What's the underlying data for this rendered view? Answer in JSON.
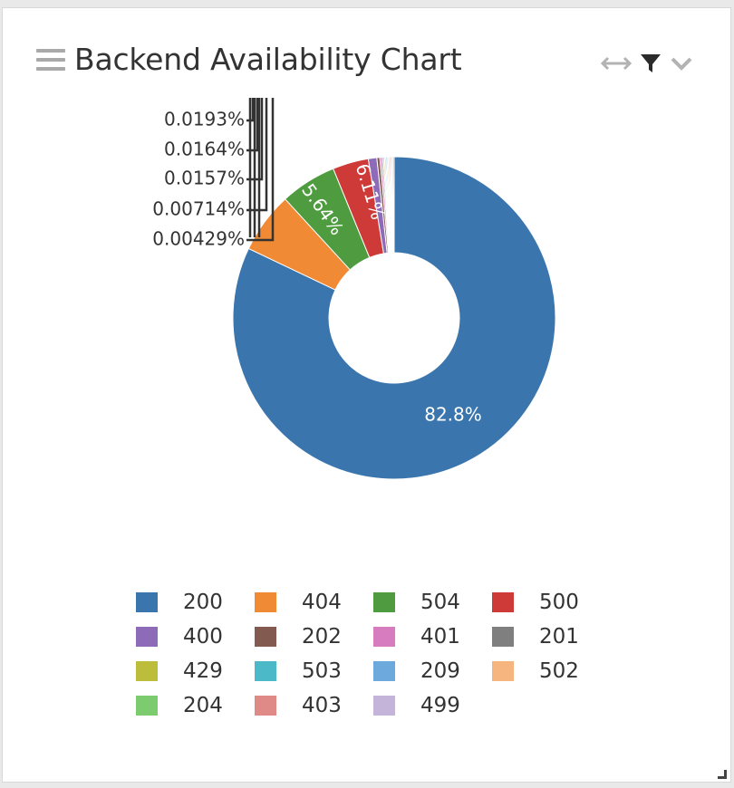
{
  "widget": {
    "title": "Backend Availability Chart",
    "icons": {
      "menu": "hamburger-icon",
      "expand": "horizontal-expand-icon",
      "filter": "filter-icon",
      "collapse": "chevron-down-icon",
      "resize": "resize-corner-icon"
    }
  },
  "chart_data": {
    "type": "donut",
    "title": "Backend Availability Chart",
    "slices": [
      {
        "label": "200",
        "percent": 82.8,
        "color": "#3a76ad",
        "data_label": "82.8%"
      },
      {
        "label": "404",
        "percent": 6.11,
        "color": "#f08a34",
        "data_label": "6.11%"
      },
      {
        "label": "504",
        "percent": 5.64,
        "color": "#4e9c3f",
        "data_label": "5.64%"
      },
      {
        "label": "500",
        "percent": 3.6,
        "color": "#cd3a37",
        "data_label": ""
      },
      {
        "label": "400",
        "percent": 0.85,
        "color": "#8d6bb8",
        "data_label": ""
      },
      {
        "label": "202",
        "percent": 0.3,
        "color": "#835a50",
        "data_label": ""
      },
      {
        "label": "401",
        "percent": 0.2,
        "color": "#d67cbf",
        "data_label": ""
      },
      {
        "label": "201",
        "percent": 0.14,
        "color": "#7f7f7f",
        "data_label": ""
      },
      {
        "label": "429",
        "percent": 0.1,
        "color": "#bcbd3a",
        "data_label": ""
      },
      {
        "label": "503",
        "percent": 0.08,
        "color": "#4cb9c8",
        "data_label": ""
      },
      {
        "label": "209",
        "percent": 0.06,
        "color": "#6ea9de",
        "data_label": ""
      },
      {
        "label": "502",
        "percent": 0.05,
        "color": "#f6b57f",
        "data_label": ""
      },
      {
        "label": "204",
        "percent": 0.0193,
        "color": "#7ccb6e",
        "data_label": "0.0193%"
      },
      {
        "label": "403",
        "percent": 0.0164,
        "color": "#df8a87",
        "data_label": "0.0164%"
      },
      {
        "label": "499",
        "percent": 0.0157,
        "color": "#c5b4da",
        "data_label": "0.0157%"
      },
      {
        "label": "",
        "percent": 0.00714,
        "color": "#888888",
        "data_label": "0.00714%"
      },
      {
        "label": "",
        "percent": 0.00429,
        "color": "#888888",
        "data_label": "0.00429%"
      }
    ],
    "legend": {
      "position": "bottom",
      "columns": 4,
      "items": [
        {
          "label": "200",
          "color": "#3a76ad"
        },
        {
          "label": "404",
          "color": "#f08a34"
        },
        {
          "label": "504",
          "color": "#4e9c3f"
        },
        {
          "label": "500",
          "color": "#cd3a37"
        },
        {
          "label": "400",
          "color": "#8d6bb8"
        },
        {
          "label": "202",
          "color": "#835a50"
        },
        {
          "label": "401",
          "color": "#d67cbf"
        },
        {
          "label": "201",
          "color": "#7f7f7f"
        },
        {
          "label": "429",
          "color": "#bcbd3a"
        },
        {
          "label": "503",
          "color": "#4cb9c8"
        },
        {
          "label": "209",
          "color": "#6ea9de"
        },
        {
          "label": "502",
          "color": "#f6b57f"
        },
        {
          "label": "204",
          "color": "#7ccb6e"
        },
        {
          "label": "403",
          "color": "#df8a87"
        },
        {
          "label": "499",
          "color": "#c5b4da"
        }
      ]
    },
    "outside_labels": [
      "0.0193%",
      "0.0164%",
      "0.0157%",
      "0.00714%",
      "0.00429%"
    ]
  }
}
